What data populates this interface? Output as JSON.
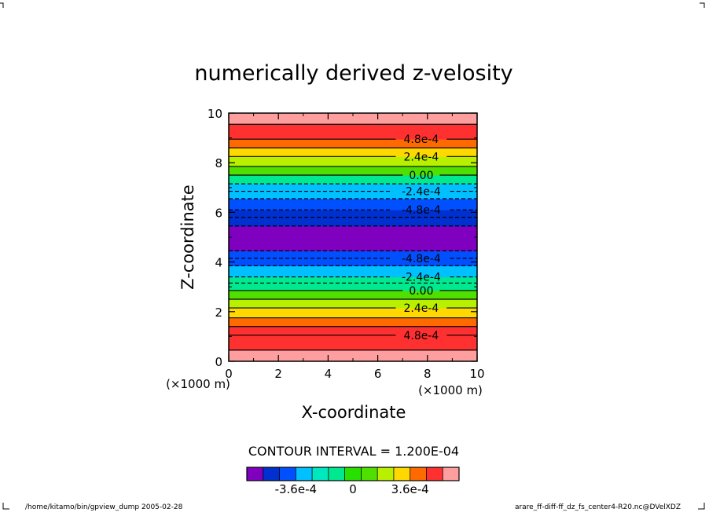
{
  "chart_data": {
    "type": "heatmap",
    "title": "numerically derived z-velosity",
    "xlabel": "X-coordinate",
    "ylabel": "Z-coordinate",
    "x_unit": "(×1000 m)",
    "y_unit": "(×1000 m)",
    "xlim": [
      0,
      10
    ],
    "ylim": [
      0,
      10
    ],
    "x_ticks": [
      "0",
      "2",
      "4",
      "6",
      "8",
      "10"
    ],
    "y_ticks": [
      "0",
      "2",
      "4",
      "6",
      "8",
      "10"
    ],
    "x_tick_values": [
      0,
      2,
      4,
      6,
      8,
      10
    ],
    "y_tick_values": [
      0,
      2,
      4,
      6,
      8,
      10
    ],
    "bands": [
      {
        "z0": 0.0,
        "z1": 0.45,
        "color": "#ff9e9e"
      },
      {
        "z0": 0.45,
        "z1": 1.05,
        "color": "#ff3030"
      },
      {
        "z0": 1.05,
        "z1": 1.4,
        "color": "#ff3030"
      },
      {
        "z0": 1.4,
        "z1": 1.75,
        "color": "#ff6a00"
      },
      {
        "z0": 1.75,
        "z1": 2.15,
        "color": "#ffd800"
      },
      {
        "z0": 2.15,
        "z1": 2.5,
        "color": "#b8f000"
      },
      {
        "z0": 2.5,
        "z1": 2.85,
        "color": "#50e000"
      },
      {
        "z0": 2.85,
        "z1": 3.4,
        "color": "#00e890"
      },
      {
        "z0": 3.4,
        "z1": 3.85,
        "color": "#00c0ff"
      },
      {
        "z0": 3.85,
        "z1": 4.45,
        "color": "#0050ff"
      },
      {
        "z0": 4.45,
        "z1": 5.45,
        "color": "#8000c0"
      },
      {
        "z0": 5.45,
        "z1": 6.1,
        "color": "#0030d0"
      },
      {
        "z0": 6.1,
        "z1": 6.55,
        "color": "#0050ff"
      },
      {
        "z0": 6.55,
        "z1": 7.15,
        "color": "#00c0ff"
      },
      {
        "z0": 7.15,
        "z1": 7.5,
        "color": "#00e890"
      },
      {
        "z0": 7.5,
        "z1": 7.85,
        "color": "#50e000"
      },
      {
        "z0": 7.85,
        "z1": 8.25,
        "color": "#b8f000"
      },
      {
        "z0": 8.25,
        "z1": 8.6,
        "color": "#ffd800"
      },
      {
        "z0": 8.6,
        "z1": 8.95,
        "color": "#ff6a00"
      },
      {
        "z0": 8.95,
        "z1": 9.55,
        "color": "#ff3030"
      },
      {
        "z0": 9.55,
        "z1": 10.0,
        "color": "#ff9e9e"
      }
    ],
    "contours": [
      {
        "z": 0.45,
        "dashed": false,
        "label": ""
      },
      {
        "z": 1.05,
        "dashed": false,
        "label": "4.8e-4"
      },
      {
        "z": 1.4,
        "dashed": false,
        "label": ""
      },
      {
        "z": 1.75,
        "dashed": false,
        "label": ""
      },
      {
        "z": 2.15,
        "dashed": false,
        "label": "2.4e-4"
      },
      {
        "z": 2.5,
        "dashed": false,
        "label": ""
      },
      {
        "z": 2.85,
        "dashed": false,
        "label": "0.00"
      },
      {
        "z": 3.15,
        "dashed": true,
        "label": ""
      },
      {
        "z": 3.4,
        "dashed": true,
        "label": "-2.4e-4"
      },
      {
        "z": 3.85,
        "dashed": true,
        "label": ""
      },
      {
        "z": 4.15,
        "dashed": true,
        "label": "-4.8e-4"
      },
      {
        "z": 4.45,
        "dashed": true,
        "label": ""
      },
      {
        "z": 5.45,
        "dashed": true,
        "label": ""
      },
      {
        "z": 5.8,
        "dashed": true,
        "label": ""
      },
      {
        "z": 6.1,
        "dashed": true,
        "label": "-4.8e-4"
      },
      {
        "z": 6.55,
        "dashed": true,
        "label": ""
      },
      {
        "z": 6.85,
        "dashed": true,
        "label": "-2.4e-4"
      },
      {
        "z": 7.15,
        "dashed": true,
        "label": ""
      },
      {
        "z": 7.5,
        "dashed": false,
        "label": "0.00"
      },
      {
        "z": 7.85,
        "dashed": false,
        "label": ""
      },
      {
        "z": 8.25,
        "dashed": false,
        "label": "2.4e-4"
      },
      {
        "z": 8.6,
        "dashed": false,
        "label": ""
      },
      {
        "z": 8.95,
        "dashed": false,
        "label": "4.8e-4"
      },
      {
        "z": 9.55,
        "dashed": false,
        "label": ""
      }
    ],
    "contour_interval_text": "CONTOUR INTERVAL = 1.200E-04",
    "colorbar": {
      "colors": [
        "#8000c0",
        "#0030d0",
        "#0050ff",
        "#00c0ff",
        "#00e8c0",
        "#00e890",
        "#28e000",
        "#50e000",
        "#b8f000",
        "#ffd800",
        "#ff6a00",
        "#ff3030",
        "#ff9e9e"
      ],
      "tick_labels": [
        "-3.6e-4",
        "0",
        "3.6e-4"
      ],
      "tick_positions": [
        3,
        6.5,
        10
      ]
    }
  },
  "footer": {
    "left": "/home/kitamo/bin/gpview_dump  2005-02-28",
    "right": "arare_ff-diff-ff_dz_fs_center4-R20.nc@DVelXDZ"
  }
}
